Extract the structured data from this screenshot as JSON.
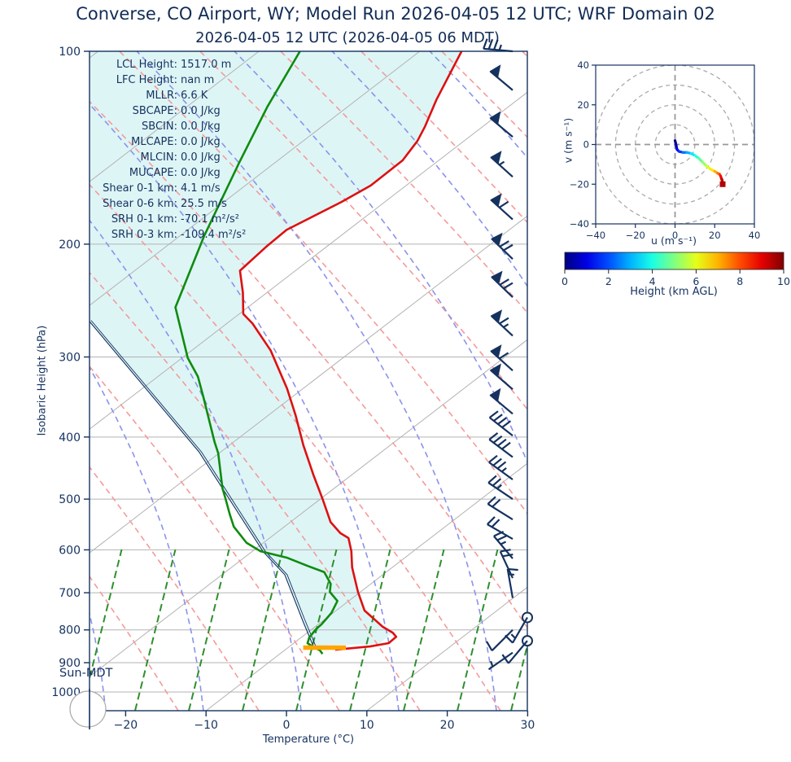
{
  "page": {
    "title": "Converse, CO Airport, WY; Model Run 2026-04-05 12 UTC; WRF Domain 02",
    "subtitle": "2026-04-05 12 UTC  (2026-04-05 06 MDT)"
  },
  "skewt": {
    "ylabel": "Isobaric Height (hPa)",
    "xlabel": "Temperature (°C)",
    "sun_label": "Sun-MDT",
    "p_ticks": [
      {
        "v": 100,
        "label": "100"
      },
      {
        "v": 200,
        "label": "200"
      },
      {
        "v": 300,
        "label": "300"
      },
      {
        "v": 400,
        "label": "400"
      },
      {
        "v": 500,
        "label": "500"
      },
      {
        "v": 600,
        "label": "600"
      },
      {
        "v": 700,
        "label": "700"
      },
      {
        "v": 800,
        "label": "800"
      },
      {
        "v": 900,
        "label": "900"
      },
      {
        "v": 1000,
        "label": "1000"
      }
    ],
    "t_ticks": [
      {
        "v": -20,
        "label": "−20"
      },
      {
        "v": -10,
        "label": "−10"
      },
      {
        "v": 0,
        "label": "0"
      },
      {
        "v": 10,
        "label": "10"
      },
      {
        "v": 20,
        "label": "20"
      },
      {
        "v": 30,
        "label": "30"
      }
    ],
    "stats": [
      {
        "label": "LCL Height:",
        "value": "1517.0 m"
      },
      {
        "label": "LFC Height:",
        "value": "nan m"
      },
      {
        "label": "MLLR:",
        "value": "6.6 K"
      },
      {
        "label": "SBCAPE:",
        "value": "0.0 J/kg"
      },
      {
        "label": "SBCIN:",
        "value": "0.0 J/kg"
      },
      {
        "label": "MLCAPE:",
        "value": "0.0 J/kg"
      },
      {
        "label": "MLCIN:",
        "value": "0.0 J/kg"
      },
      {
        "label": "MUCAPE:",
        "value": "0.0 J/kg"
      },
      {
        "label": "Shear 0-1 km:",
        "value": "4.1 m/s"
      },
      {
        "label": "Shear 0-6 km:",
        "value": "25.5 m/s"
      },
      {
        "label": "SRH 0-1 km:",
        "value": "-70.1 m²/s²"
      },
      {
        "label": "SRH 0-3 km:",
        "value": "-109.4 m²/s²"
      }
    ]
  },
  "hodograph": {
    "xlabel": "u (m s⁻¹)",
    "ylabel": "v (m s⁻¹)",
    "u_ticks": [
      {
        "v": -40,
        "label": "−40"
      },
      {
        "v": -20,
        "label": "−20"
      },
      {
        "v": 0,
        "label": "0"
      },
      {
        "v": 20,
        "label": "20"
      },
      {
        "v": 40,
        "label": "40"
      }
    ],
    "v_ticks": [
      {
        "v": -40,
        "label": "−40"
      },
      {
        "v": -20,
        "label": "−20"
      },
      {
        "v": 0,
        "label": "0"
      },
      {
        "v": 20,
        "label": "20"
      },
      {
        "v": 40,
        "label": "40"
      }
    ],
    "rings": [
      10,
      20,
      30,
      40
    ]
  },
  "colorbar": {
    "label": "Height (km AGL)",
    "ticks": [
      "0",
      "2",
      "4",
      "6",
      "8",
      "10"
    ],
    "min": 0,
    "max": 10
  },
  "colors": {
    "navy": "#15325f",
    "temperature_line": "#dd1111",
    "dewpoint_line": "#0e8c0e",
    "shade_fill": "#def5f6",
    "isotherm_gray": "#b3b3b3",
    "dry_adiabat": "#f59a9a",
    "moist_adiabat": "#8a93ea",
    "mixing_ratio": "#2e8f2e",
    "surface_marker": "#ffa500"
  },
  "chart_data": {
    "type": "skewt-logp",
    "title": "2026-04-05 12 UTC  (2026-04-05 06 MDT)",
    "xlabel": "Temperature (°C)",
    "ylabel": "Isobaric Height (hPa)",
    "x_range_c": [
      -24.5,
      30
    ],
    "p_range_hpa": [
      100,
      1069
    ],
    "temperature_profile": [
      {
        "p": 100,
        "t": -84.8
      },
      {
        "p": 119,
        "t": -80.1
      },
      {
        "p": 131,
        "t": -77.2
      },
      {
        "p": 138,
        "t": -75.8
      },
      {
        "p": 148,
        "t": -74.5
      },
      {
        "p": 162,
        "t": -74.4
      },
      {
        "p": 172,
        "t": -75.4
      },
      {
        "p": 190,
        "t": -77.7
      },
      {
        "p": 202,
        "t": -77.5
      },
      {
        "p": 220,
        "t": -76.9
      },
      {
        "p": 238,
        "t": -73.0
      },
      {
        "p": 257,
        "t": -69.5
      },
      {
        "p": 266,
        "t": -66.8
      },
      {
        "p": 293,
        "t": -60.2
      },
      {
        "p": 336,
        "t": -52.0
      },
      {
        "p": 370,
        "t": -46.6
      },
      {
        "p": 412,
        "t": -40.8
      },
      {
        "p": 458,
        "t": -34.8
      },
      {
        "p": 500,
        "t": -29.7
      },
      {
        "p": 543,
        "t": -25.0
      },
      {
        "p": 565,
        "t": -22.0
      },
      {
        "p": 575,
        "t": -20.2
      },
      {
        "p": 603,
        "t": -17.7
      },
      {
        "p": 639,
        "t": -15.0
      },
      {
        "p": 698,
        "t": -10.3
      },
      {
        "p": 746,
        "t": -6.5
      },
      {
        "p": 791,
        "t": -1.6
      },
      {
        "p": 808,
        "t": 0.6
      },
      {
        "p": 820,
        "t": 1.7
      },
      {
        "p": 839,
        "t": 1.8
      },
      {
        "p": 849,
        "t": 0.0
      },
      {
        "p": 859,
        "t": -3.8
      }
    ],
    "dewpoint_profile": [
      {
        "p": 100,
        "t": -104.9
      },
      {
        "p": 122,
        "t": -100.0
      },
      {
        "p": 149,
        "t": -94.5
      },
      {
        "p": 194,
        "t": -87.0
      },
      {
        "p": 251,
        "t": -79.0
      },
      {
        "p": 301,
        "t": -69.3
      },
      {
        "p": 322,
        "t": -65.0
      },
      {
        "p": 346,
        "t": -61.1
      },
      {
        "p": 407,
        "t": -52.4
      },
      {
        "p": 424,
        "t": -50.1
      },
      {
        "p": 481,
        "t": -43.9
      },
      {
        "p": 496,
        "t": -42.2
      },
      {
        "p": 528,
        "t": -38.8
      },
      {
        "p": 552,
        "t": -36.3
      },
      {
        "p": 585,
        "t": -32.1
      },
      {
        "p": 603,
        "t": -29.0
      },
      {
        "p": 617,
        "t": -24.7
      },
      {
        "p": 635,
        "t": -20.9
      },
      {
        "p": 650,
        "t": -17.7
      },
      {
        "p": 678,
        "t": -15.0
      },
      {
        "p": 698,
        "t": -13.8
      },
      {
        "p": 721,
        "t": -11.4
      },
      {
        "p": 753,
        "t": -10.2
      },
      {
        "p": 784,
        "t": -9.6
      },
      {
        "p": 798,
        "t": -9.5
      },
      {
        "p": 822,
        "t": -9.0
      },
      {
        "p": 839,
        "t": -8.3
      },
      {
        "p": 851,
        "t": -6.9
      },
      {
        "p": 861,
        "t": -5.6
      },
      {
        "p": 872,
        "t": -4.7
      }
    ],
    "parcel_profile": [
      {
        "p": 851,
        "t": -6.9
      },
      {
        "p": 773,
        "t": -12.6
      },
      {
        "p": 656,
        "t": -22.2
      },
      {
        "p": 604,
        "t": -28.6
      },
      {
        "p": 422,
        "t": -52.7
      },
      {
        "p": 263,
        "t": -87.7
      }
    ],
    "surface_marker": {
      "p": 851,
      "t1": -8.2,
      "t2": -4.1
    },
    "wind_barbs": [
      {
        "p": 100,
        "spd": 17.5,
        "ang": 175
      },
      {
        "p": 115,
        "spd": 25,
        "ang": 140
      },
      {
        "p": 136,
        "spd": 25,
        "ang": 140
      },
      {
        "p": 157,
        "spd": 27.5,
        "ang": 138
      },
      {
        "p": 183,
        "spd": 30,
        "ang": 138
      },
      {
        "p": 211,
        "spd": 35,
        "ang": 136
      },
      {
        "p": 242,
        "spd": 35,
        "ang": 136
      },
      {
        "p": 278,
        "spd": 32.5,
        "ang": 137
      },
      {
        "p": 315,
        "spd": 30,
        "ang": 138
      },
      {
        "p": 337,
        "spd": 25,
        "ang": 139
      },
      {
        "p": 368,
        "spd": 25,
        "ang": 140
      },
      {
        "p": 398,
        "spd": 20,
        "ang": 142
      },
      {
        "p": 430,
        "spd": 20,
        "ang": 143
      },
      {
        "p": 466,
        "spd": 17.5,
        "ang": 144
      },
      {
        "p": 500,
        "spd": 12.5,
        "ang": 146
      },
      {
        "p": 538,
        "spd": 10,
        "ang": 148
      },
      {
        "p": 577,
        "spd": 10,
        "ang": 150
      },
      {
        "p": 619,
        "spd": 12.5,
        "ang": 130
      },
      {
        "p": 664,
        "spd": 10,
        "ang": 115
      },
      {
        "p": 713,
        "spd": 7.5,
        "ang": 100
      },
      {
        "p": 765,
        "spd": 7.5,
        "ang": 240,
        "circle": true
      },
      {
        "p": 800,
        "spd": 5,
        "ang": 225
      },
      {
        "p": 832,
        "spd": 5,
        "ang": 230,
        "circle": true
      },
      {
        "p": 868,
        "spd": 2.5,
        "ang": 215
      }
    ],
    "hodograph_trace": {
      "u": [
        0,
        0.5,
        1,
        2,
        4,
        6,
        8,
        10,
        12,
        14,
        16,
        18,
        20,
        21.5,
        22.5,
        23,
        23.5,
        24,
        24
      ],
      "v": [
        2,
        0,
        -2.5,
        -3.5,
        -4,
        -4,
        -4.5,
        -5.5,
        -7,
        -9,
        -11,
        -12.5,
        -13.5,
        -14.5,
        -15,
        -16,
        -17.5,
        -19,
        -20
      ],
      "height_km_range": [
        0,
        10
      ]
    }
  }
}
